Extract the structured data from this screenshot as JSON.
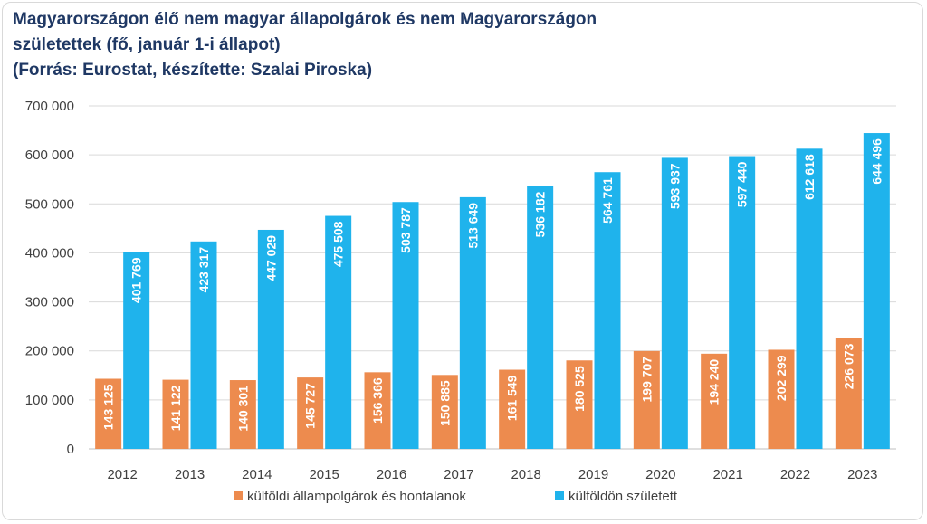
{
  "title": {
    "line1": "Magyarországon élő nem magyar állapolgárok és nem Magyarországon",
    "line2": "születettek (fő, január 1-i állapot)",
    "line3": "(Forrás: Eurostat, készítette: Szalai Piroska)"
  },
  "colors": {
    "series1": "#ed8b4e",
    "series2": "#1fb3ec",
    "grid": "#d9d9d9",
    "title": "#1f3864"
  },
  "chart_data": {
    "type": "bar",
    "title": "Magyarországon élő nem magyar állapolgárok és nem Magyarországon születettek (fő, január 1-i állapot)",
    "categories": [
      "2012",
      "2013",
      "2014",
      "2015",
      "2016",
      "2017",
      "2018",
      "2019",
      "2020",
      "2021",
      "2022",
      "2023"
    ],
    "series": [
      {
        "name": "külföldi állampolgárok és hontalanok",
        "values": [
          143125,
          141122,
          140301,
          145727,
          156366,
          150885,
          161549,
          180525,
          199707,
          194240,
          202299,
          226073
        ],
        "labels": [
          "143 125",
          "141 122",
          "140 301",
          "145 727",
          "156 366",
          "150 885",
          "161 549",
          "180 525",
          "199 707",
          "194 240",
          "202 299",
          "226 073"
        ]
      },
      {
        "name": "külföldön született",
        "values": [
          401769,
          423317,
          447029,
          475508,
          503787,
          513649,
          536182,
          564761,
          593937,
          597440,
          612618,
          644496
        ],
        "labels": [
          "401 769",
          "423 317",
          "447 029",
          "475 508",
          "503 787",
          "513 649",
          "536 182",
          "564 761",
          "593 937",
          "597 440",
          "612 618",
          "644 496"
        ]
      }
    ],
    "ylim": [
      0,
      700000
    ],
    "yticks": [
      0,
      100000,
      200000,
      300000,
      400000,
      500000,
      600000,
      700000
    ],
    "ytick_labels": [
      "0",
      "100 000",
      "200 000",
      "300 000",
      "400 000",
      "500 000",
      "600 000",
      "700 000"
    ],
    "grid": true,
    "legend_position": "bottom"
  }
}
